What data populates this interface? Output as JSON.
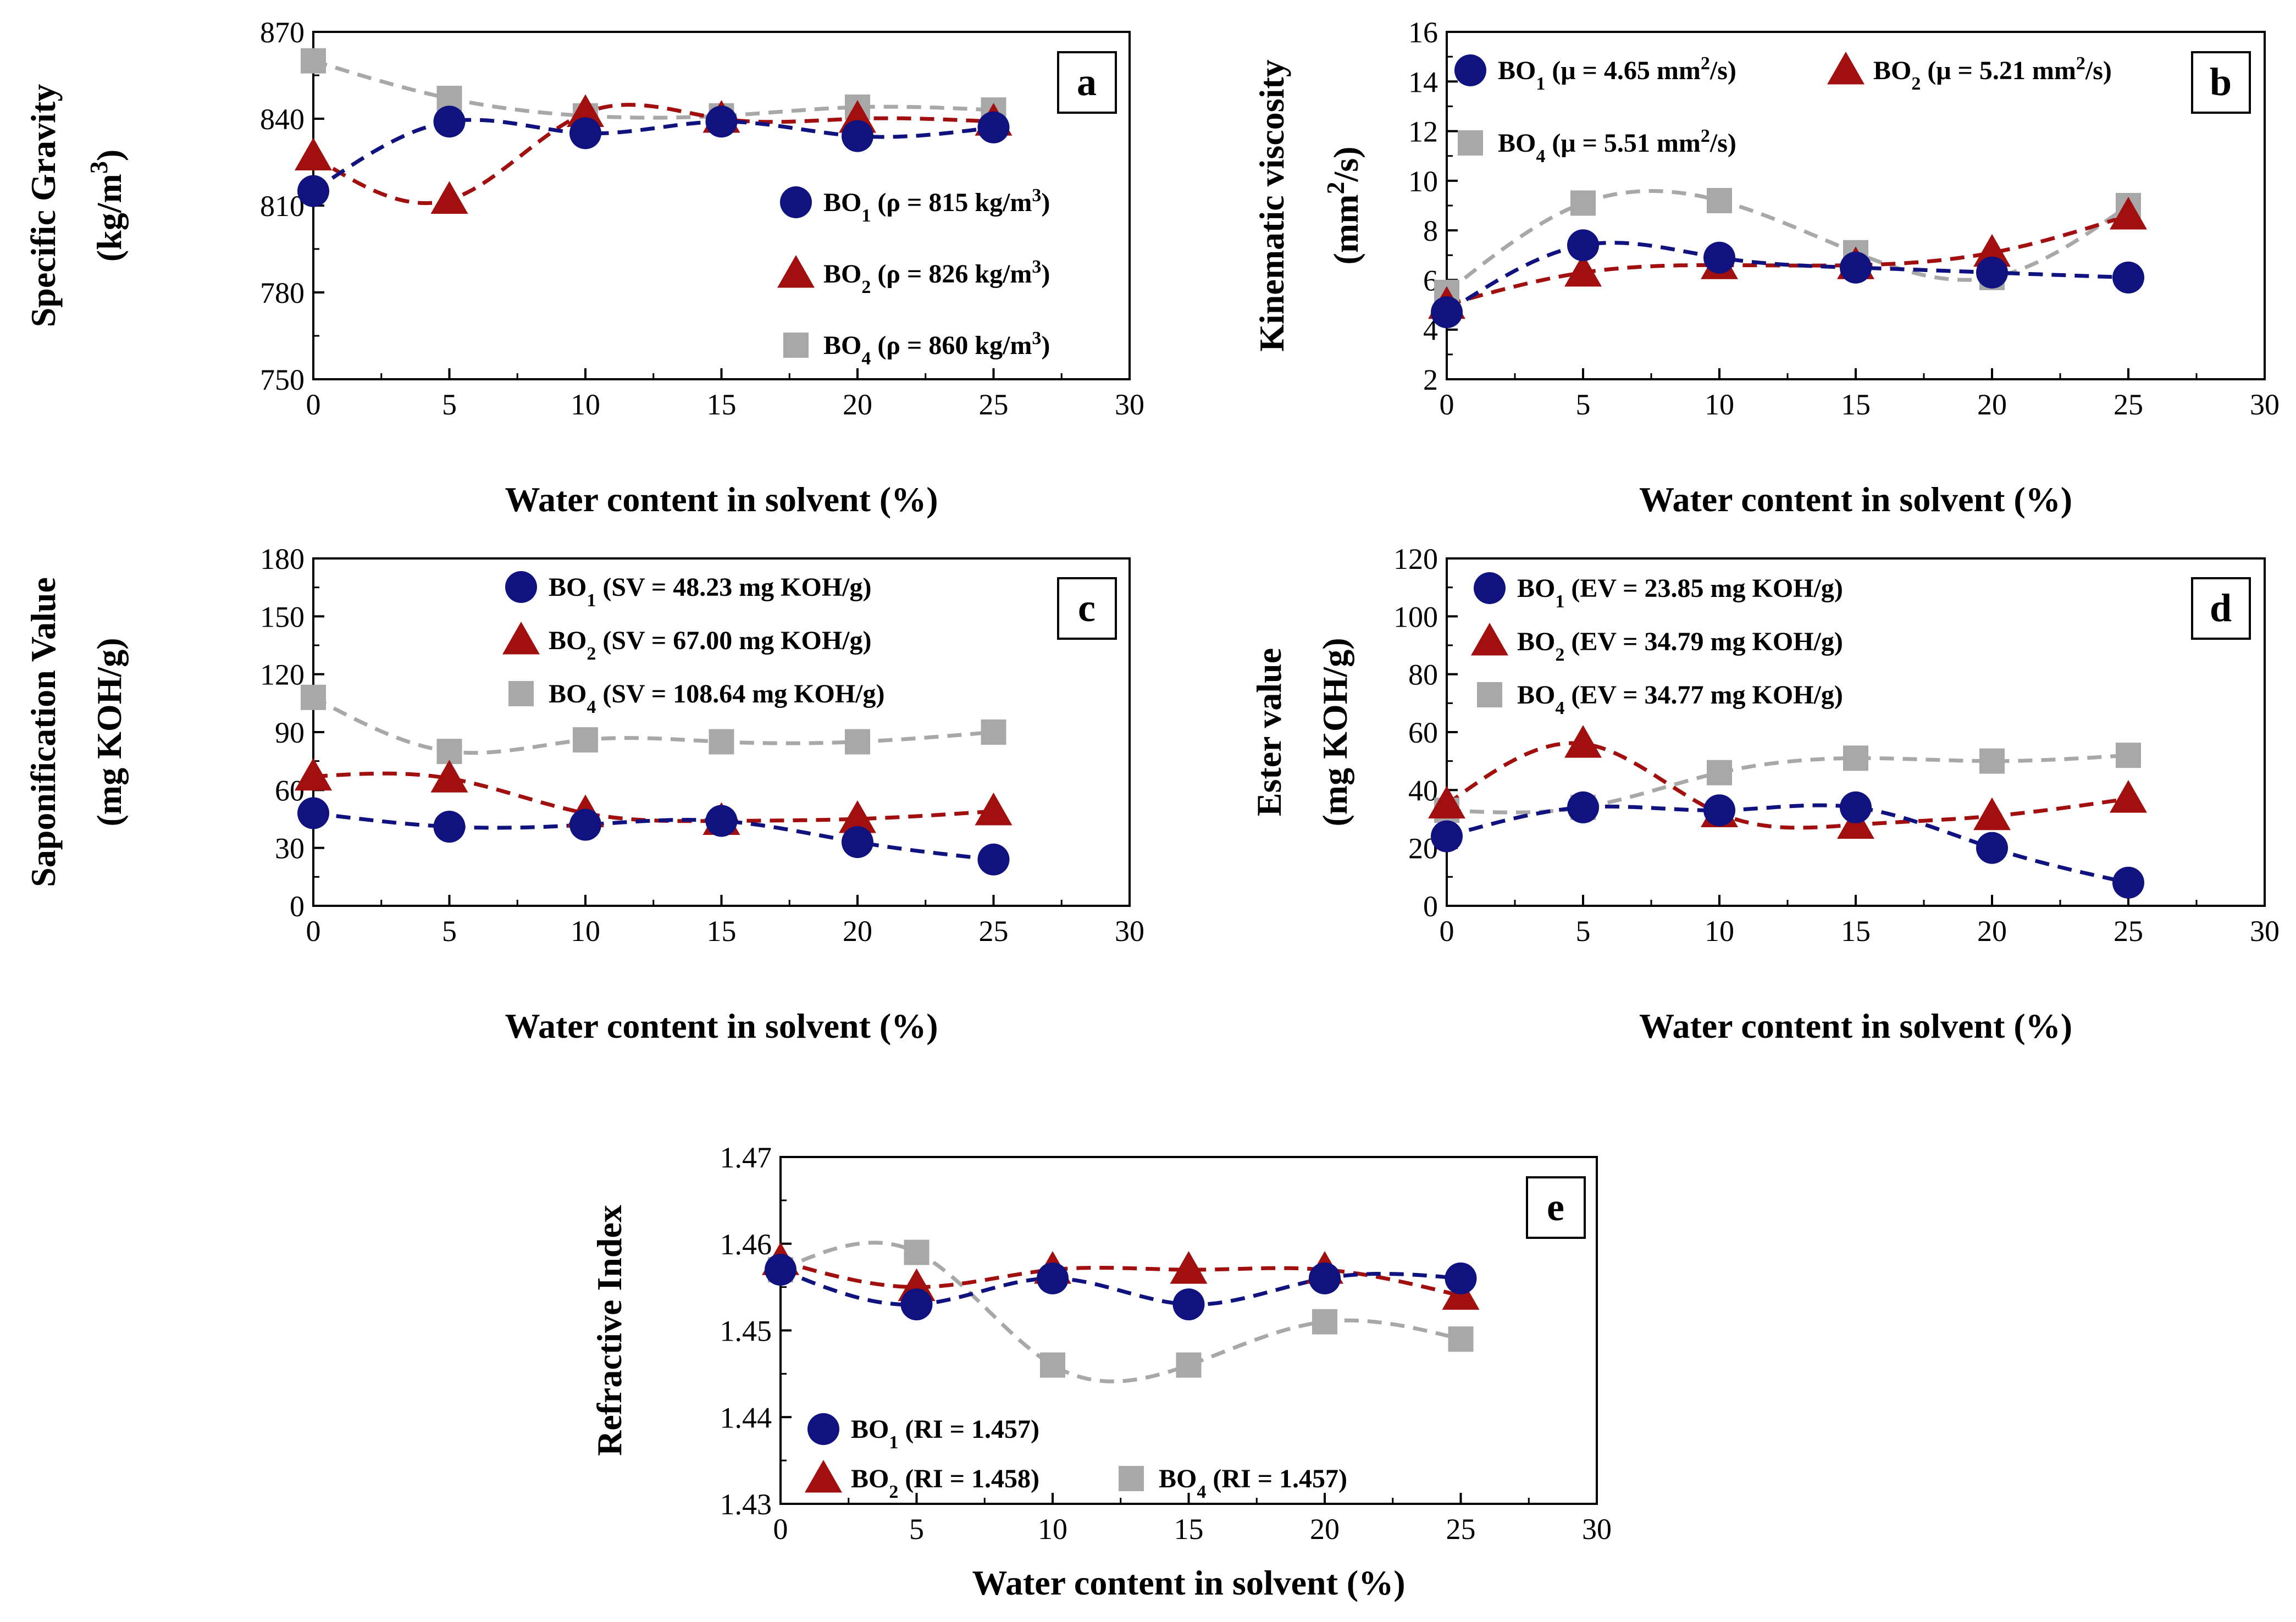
{
  "colors": {
    "BO1": "#0f127f",
    "BO2": "#a10f0f",
    "BO4": "#a8a8a8"
  },
  "chart_data": [
    {
      "id": "a",
      "type": "scatter",
      "panel_label": "a",
      "xlabel": "Water content in solvent (%)",
      "ylabel": [
        "Specific Gravity",
        "(kg/m",
        "3",
        ")"
      ],
      "xlim": [
        0,
        30
      ],
      "xticks": [
        0,
        5,
        10,
        15,
        20,
        25,
        30
      ],
      "ylim": [
        750,
        870
      ],
      "yticks": [
        750,
        780,
        810,
        840,
        870
      ],
      "x": [
        0,
        5,
        10,
        15,
        20,
        25
      ],
      "series": [
        {
          "key": "BO1",
          "marker": "circle",
          "values": [
            815,
            839,
            835,
            839,
            834,
            837
          ],
          "legend": {
            "name": "BO",
            "sub": "1",
            "text": " (ρ = 815 kg/m",
            "sup": "3",
            "tail": ")"
          }
        },
        {
          "key": "BO2",
          "marker": "triangle",
          "values": [
            827,
            812,
            842,
            840,
            840,
            839
          ],
          "legend": {
            "name": "BO",
            "sub": "2",
            "text": " (ρ = 826  kg/m",
            "sup": "3",
            "tail": ")"
          }
        },
        {
          "key": "BO4",
          "marker": "square",
          "values": [
            860,
            847,
            841,
            841,
            844,
            843
          ],
          "legend": {
            "name": "BO",
            "sub": "4",
            "text": " (ρ = 860  kg/m",
            "sup": "3",
            "tail": ")"
          }
        }
      ]
    },
    {
      "id": "b",
      "type": "scatter",
      "panel_label": "b",
      "xlabel": "Water content in solvent (%)",
      "ylabel": [
        "Kinematic viscosity",
        "(mm",
        "2",
        "/s)"
      ],
      "xlim": [
        0,
        30
      ],
      "xticks": [
        0,
        5,
        10,
        15,
        20,
        25,
        30
      ],
      "ylim": [
        2,
        16
      ],
      "yticks": [
        2,
        4,
        6,
        8,
        10,
        12,
        14,
        16
      ],
      "x": [
        0,
        5,
        10,
        15,
        20,
        25
      ],
      "series": [
        {
          "key": "BO1",
          "marker": "circle",
          "values": [
            4.7,
            7.4,
            6.9,
            6.5,
            6.3,
            6.1
          ],
          "legend": {
            "name": "BO",
            "sub": "1",
            "text": " (μ = 4.65 mm",
            "sup": "2",
            "tail": "/s)"
          }
        },
        {
          "key": "BO2",
          "marker": "triangle",
          "values": [
            5.0,
            6.3,
            6.6,
            6.6,
            7.1,
            8.6
          ],
          "legend": {
            "name": "BO",
            "sub": "2",
            "text": " (μ = 5.21 mm",
            "sup": "2",
            "tail": "/s)"
          }
        },
        {
          "key": "BO4",
          "marker": "square",
          "values": [
            5.5,
            9.1,
            9.2,
            7.1,
            6.1,
            9.0
          ],
          "legend": {
            "name": "BO",
            "sub": "4",
            "text": " (μ = 5.51  mm",
            "sup": "2",
            "tail": "/s)"
          }
        }
      ]
    },
    {
      "id": "c",
      "type": "scatter",
      "panel_label": "c",
      "xlabel": "Water content in solvent (%)",
      "ylabel": [
        "Saponification Value",
        "(mg KOH/g)"
      ],
      "xlim": [
        0,
        30
      ],
      "xticks": [
        0,
        5,
        10,
        15,
        20,
        25,
        30
      ],
      "ylim": [
        0,
        180
      ],
      "yticks": [
        0,
        30,
        60,
        90,
        120,
        150,
        180
      ],
      "x": [
        0,
        5,
        10,
        15,
        20,
        25
      ],
      "series": [
        {
          "key": "BO1",
          "marker": "circle",
          "values": [
            48,
            41,
            42,
            44,
            33,
            24
          ],
          "legend": {
            "name": "BO",
            "sub": "1",
            "text": " (SV = 48.23 mg KOH/g)"
          }
        },
        {
          "key": "BO2",
          "marker": "triangle",
          "values": [
            67,
            66,
            48,
            44,
            45,
            49
          ],
          "legend": {
            "name": "BO",
            "sub": "2",
            "text": " (SV = 67.00 mg KOH/g)"
          }
        },
        {
          "key": "BO4",
          "marker": "square",
          "values": [
            108,
            80,
            86,
            85,
            85,
            90
          ],
          "legend": {
            "name": "BO",
            "sub": "4",
            "text": " (SV = 108.64 mg KOH/g)"
          }
        }
      ]
    },
    {
      "id": "d",
      "type": "scatter",
      "panel_label": "d",
      "xlabel": "Water content in solvent (%)",
      "ylabel": [
        "Ester value",
        "(mg KOH/g)"
      ],
      "xlim": [
        0,
        30
      ],
      "xticks": [
        0,
        5,
        10,
        15,
        20,
        25,
        30
      ],
      "ylim": [
        0,
        120
      ],
      "yticks": [
        0,
        20,
        40,
        60,
        80,
        100,
        120
      ],
      "x": [
        0,
        5,
        10,
        15,
        20,
        25
      ],
      "series": [
        {
          "key": "BO1",
          "marker": "circle",
          "values": [
            24,
            34,
            33,
            34,
            20,
            8
          ],
          "legend": {
            "name": "BO",
            "sub": "1",
            "text": " (EV = 23.85 mg KOH/g)"
          }
        },
        {
          "key": "BO2",
          "marker": "triangle",
          "values": [
            35,
            56,
            32,
            28,
            31,
            37
          ],
          "legend": {
            "name": "BO",
            "sub": "2",
            "text": " (EV = 34.79 mg KOH/g)"
          }
        },
        {
          "key": "BO4",
          "marker": "square",
          "values": [
            33,
            34,
            46,
            51,
            50,
            52
          ],
          "legend": {
            "name": "BO",
            "sub": "4",
            "text": " (EV = 34.77 mg KOH/g)"
          }
        }
      ]
    },
    {
      "id": "e",
      "type": "scatter",
      "panel_label": "e",
      "xlabel": "Water content in solvent (%)",
      "ylabel": [
        "Refractive Index"
      ],
      "xlim": [
        0,
        30
      ],
      "xticks": [
        0,
        5,
        10,
        15,
        20,
        25,
        30
      ],
      "ylim": [
        1.43,
        1.47
      ],
      "yticks": [
        1.43,
        1.44,
        1.45,
        1.46,
        1.47
      ],
      "x": [
        0,
        5,
        10,
        15,
        20,
        25
      ],
      "series": [
        {
          "key": "BO1",
          "marker": "circle",
          "values": [
            1.457,
            1.453,
            1.456,
            1.453,
            1.456,
            1.456
          ],
          "legend": {
            "name": "BO",
            "sub": "1",
            "text": " (RI = 1.457)"
          }
        },
        {
          "key": "BO2",
          "marker": "triangle",
          "values": [
            1.458,
            1.455,
            1.457,
            1.457,
            1.457,
            1.454
          ],
          "legend": {
            "name": "BO",
            "sub": "2",
            "text": " (RI = 1.458)"
          }
        },
        {
          "key": "BO4",
          "marker": "square",
          "values": [
            1.457,
            1.459,
            1.446,
            1.446,
            1.451,
            1.449
          ],
          "legend": {
            "name": "BO",
            "sub": "4",
            "text": " (RI = 1.457)"
          }
        }
      ]
    }
  ]
}
